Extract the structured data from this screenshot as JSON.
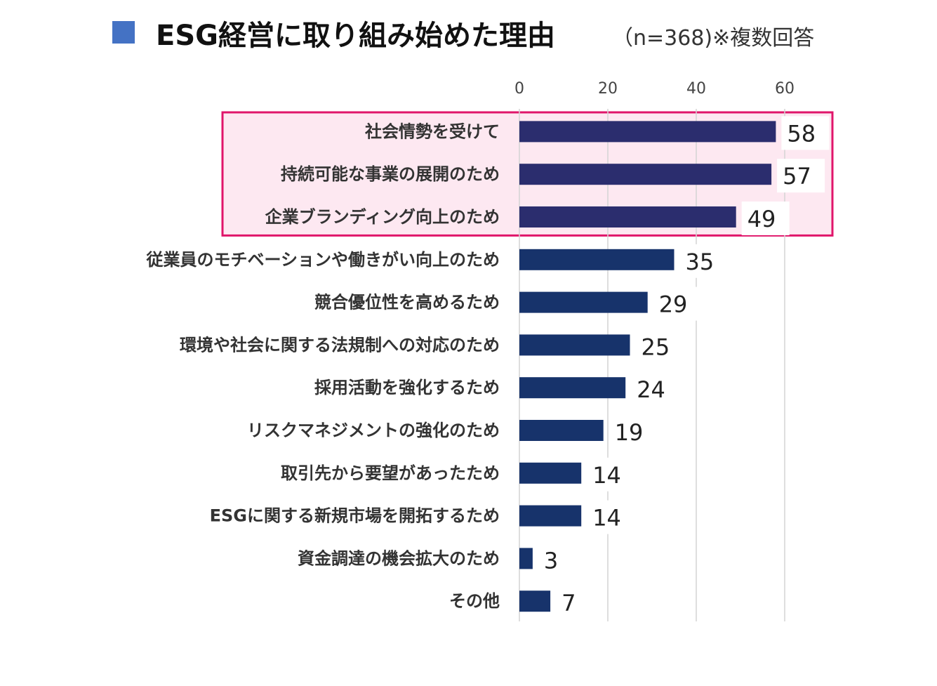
{
  "chart_data": {
    "type": "bar",
    "orientation": "horizontal",
    "title": "ESG経営に取り組み始めた理由",
    "subtitle": "（n=368)※複数回答",
    "categories": [
      "社会情勢を受けて",
      "持続可能な事業の展開のため",
      "企業ブランディング向上のため",
      "従業員のモチベーションや働きがい向上のため",
      "競合優位性を高めるため",
      "環境や社会に関する法規制への対応のため",
      "採用活動を強化するため",
      "リスクマネジメントの強化のため",
      "取引先から要望があったため",
      "ESGに関する新規市場を開拓するため",
      "資金調達の機会拡大のため",
      "その他"
    ],
    "values": [
      58,
      57,
      49,
      35,
      29,
      25,
      24,
      19,
      14,
      14,
      3,
      7
    ],
    "xlim": [
      0,
      70
    ],
    "x_ticks": [
      0,
      20,
      40,
      60
    ],
    "highlighted_indices": [
      0,
      1,
      2
    ],
    "grid": true,
    "colors": {
      "title_marker": "#4472c4",
      "bar_highlight": "#2b2d6e",
      "bar": "#17336b",
      "highlight_border": "#e0156a",
      "highlight_fill": "#fde8f1",
      "grid": "#d4d4d4",
      "label_text": "#333333",
      "value_text": "#222222"
    }
  }
}
